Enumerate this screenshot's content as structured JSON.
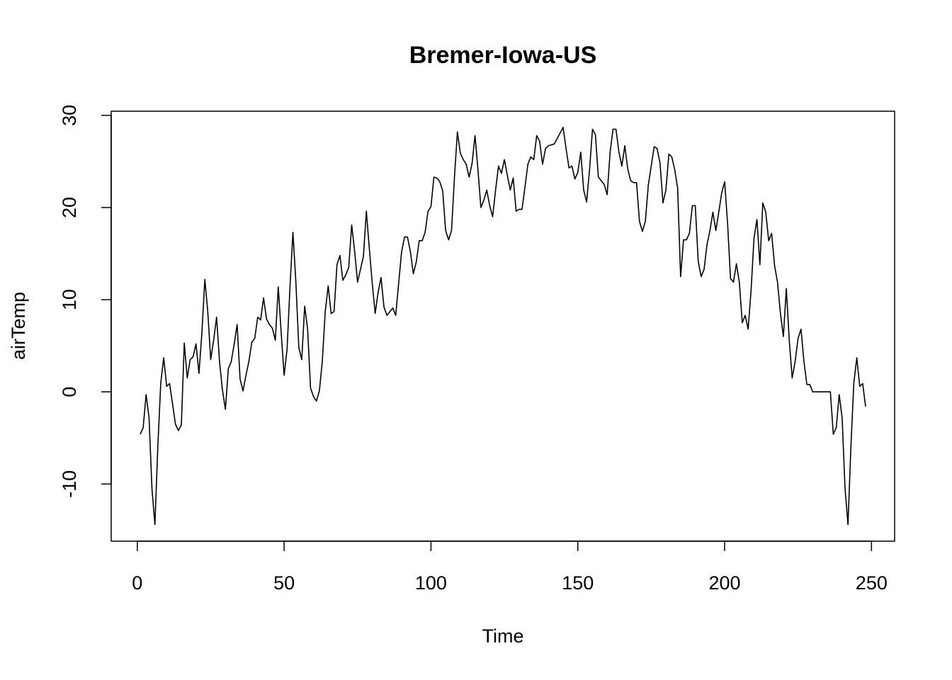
{
  "chart_data": {
    "type": "line",
    "title": "Bremer-Iowa-US",
    "x_label": "Time",
    "y_label": "airTemp",
    "color": "#000000",
    "xlim": [
      -8.88,
      257.88
    ],
    "ylim": [
      -16.2,
      30.45
    ],
    "xticks": [
      0,
      50,
      100,
      150,
      200,
      250
    ],
    "yticks": [
      -10,
      0,
      10,
      20,
      30
    ],
    "x": [
      1,
      2,
      3,
      4,
      5,
      6,
      7,
      8,
      9,
      10,
      11,
      12,
      13,
      14,
      15,
      16,
      17,
      18,
      19,
      20,
      21,
      22,
      23,
      24,
      25,
      26,
      27,
      28,
      29,
      30,
      31,
      32,
      33,
      34,
      35,
      36,
      37,
      38,
      39,
      40,
      41,
      42,
      43,
      44,
      45,
      46,
      47,
      48,
      49,
      50,
      51,
      52,
      53,
      54,
      55,
      56,
      57,
      58,
      59,
      60,
      61,
      62,
      63,
      64,
      65,
      66,
      67,
      68,
      69,
      70,
      71,
      72,
      73,
      74,
      75,
      76,
      77,
      78,
      79,
      80,
      81,
      82,
      83,
      84,
      85,
      86,
      87,
      88,
      89,
      90,
      91,
      92,
      93,
      94,
      95,
      96,
      97,
      98,
      99,
      100,
      101,
      102,
      103,
      104,
      105,
      106,
      107,
      108,
      109,
      110,
      111,
      112,
      113,
      114,
      115,
      116,
      117,
      118,
      119,
      120,
      121,
      122,
      123,
      124,
      125,
      126,
      127,
      128,
      129,
      130,
      131,
      132,
      133,
      134,
      135,
      136,
      137,
      138,
      139,
      140,
      141,
      142,
      143,
      144,
      145,
      146,
      147,
      148,
      149,
      150,
      151,
      152,
      153,
      154,
      155,
      156,
      157,
      158,
      159,
      160,
      161,
      162,
      163,
      164,
      165,
      166,
      167,
      168,
      169,
      170,
      171,
      172,
      173,
      174,
      175,
      176,
      177,
      178,
      179,
      180,
      181,
      182,
      183,
      184,
      185,
      186,
      187,
      188,
      189,
      190,
      191,
      192,
      193,
      194,
      195,
      196,
      197,
      198,
      199,
      200,
      201,
      202,
      203,
      204,
      205,
      206,
      207,
      208,
      209,
      210,
      211,
      212,
      213,
      214,
      215,
      216,
      217,
      218,
      219,
      220,
      221,
      222,
      223,
      224,
      225,
      226,
      227,
      228,
      229,
      230,
      231,
      232,
      233,
      234,
      235,
      236,
      237,
      238,
      239,
      240,
      241,
      242,
      243,
      244,
      245,
      246,
      247,
      248
    ],
    "values": [
      -4.6,
      -3.9,
      -0.3,
      -2.8,
      -10.5,
      -14.4,
      -5.9,
      1.0,
      3.7,
      0.6,
      0.9,
      -1.3,
      -3.5,
      -4.2,
      -3.6,
      5.3,
      1.5,
      3.5,
      3.8,
      5.2,
      2.0,
      6.4,
      12.2,
      8.7,
      3.5,
      5.6,
      8.1,
      3.3,
      0.2,
      -1.9,
      2.5,
      3.3,
      5.2,
      7.3,
      1.4,
      0.1,
      1.8,
      3.3,
      5.4,
      5.8,
      8.1,
      7.8,
      10.2,
      7.9,
      7.3,
      6.9,
      5.6,
      11.4,
      6.4,
      1.8,
      4.6,
      11.4,
      17.3,
      11.9,
      4.8,
      3.5,
      9.3,
      6.8,
      0.4,
      -0.5,
      -1.0,
      0.1,
      3.3,
      8.7,
      11.5,
      8.5,
      8.7,
      13.8,
      14.8,
      12.1,
      12.7,
      13.5,
      18.1,
      15.3,
      11.9,
      13.3,
      14.7,
      19.6,
      15.6,
      11.8,
      8.5,
      10.8,
      12.4,
      9.2,
      8.3,
      8.7,
      9.1,
      8.3,
      11.8,
      15.2,
      16.8,
      16.8,
      15.2,
      12.8,
      14.1,
      16.4,
      16.4,
      17.3,
      19.6,
      20.1,
      23.3,
      23.2,
      22.8,
      21.8,
      17.5,
      16.5,
      17.5,
      23.3,
      28.2,
      25.9,
      25.2,
      24.7,
      23.3,
      24.8,
      27.8,
      24.1,
      20.0,
      20.8,
      21.9,
      20.2,
      19.0,
      21.9,
      24.5,
      23.7,
      25.2,
      23.5,
      21.9,
      23.2,
      19.6,
      19.8,
      19.8,
      22.2,
      24.7,
      25.5,
      25.2,
      27.8,
      27.2,
      24.7,
      26.4,
      26.7,
      26.8,
      26.9,
      27.5,
      28.1,
      28.7,
      26.4,
      24.3,
      24.5,
      23.1,
      23.8,
      26.0,
      21.9,
      20.6,
      24.1,
      28.5,
      27.9,
      23.3,
      22.9,
      22.5,
      21.4,
      26.0,
      28.5,
      28.5,
      26.0,
      24.5,
      26.7,
      24.2,
      22.9,
      22.7,
      22.7,
      18.5,
      17.4,
      18.5,
      22.4,
      24.5,
      26.6,
      26.4,
      24.8,
      20.5,
      21.9,
      25.8,
      25.5,
      24.1,
      22.1,
      12.5,
      16.5,
      16.5,
      17.2,
      20.2,
      20.2,
      14.2,
      12.5,
      13.3,
      16.0,
      17.5,
      19.5,
      17.5,
      19.5,
      21.6,
      22.8,
      18.3,
      12.3,
      11.9,
      13.9,
      11.9,
      7.5,
      8.3,
      6.8,
      11.0,
      16.7,
      18.7,
      13.8,
      20.5,
      19.5,
      16.4,
      17.2,
      13.7,
      11.9,
      8.5,
      6.0,
      11.2,
      5.6,
      1.5,
      3.3,
      5.8,
      6.8,
      3.3,
      0.8,
      0.8,
      0,
      0,
      0,
      0,
      0,
      0,
      0,
      -4.6,
      -3.9,
      -0.3,
      -2.8,
      -10.5,
      -14.4,
      -5.9,
      1.0,
      3.7,
      0.6,
      0.9,
      -1.6
    ]
  }
}
